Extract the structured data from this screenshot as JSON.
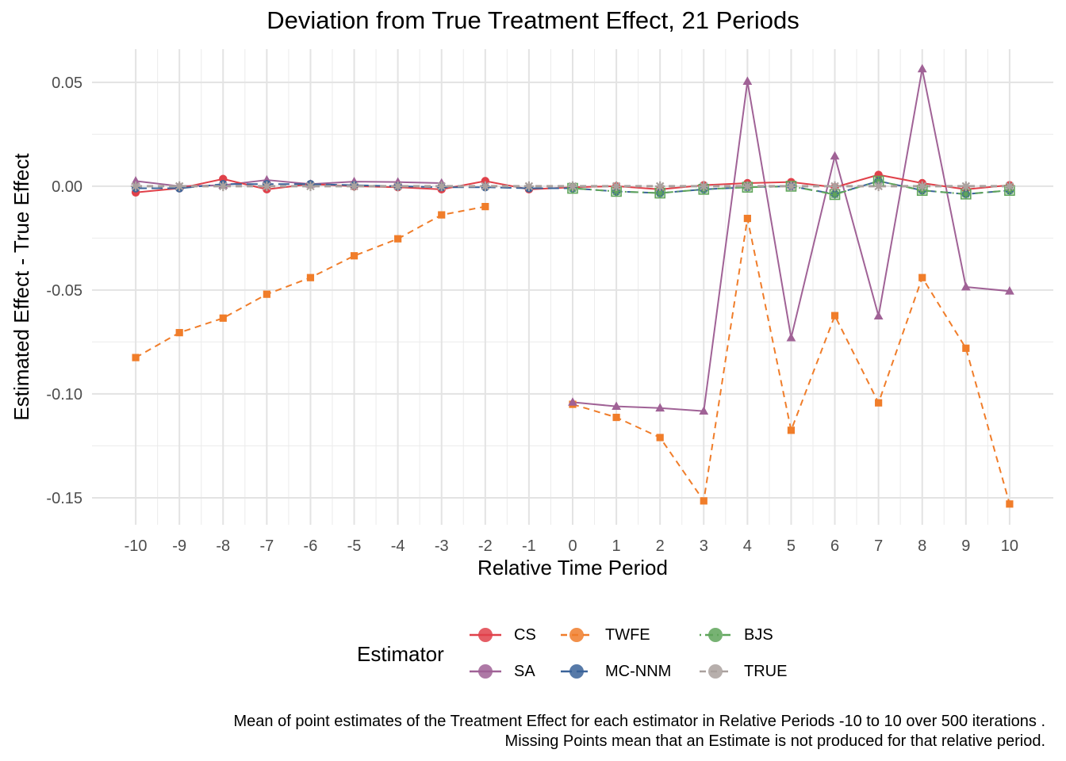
{
  "chart_data": {
    "type": "line",
    "title": "Deviation from True Treatment Effect, 21 Periods",
    "xlabel": "Relative Time Period",
    "ylabel": "Estimated Effect - True Effect",
    "x": [
      -10,
      -9,
      -8,
      -7,
      -6,
      -5,
      -4,
      -3,
      -2,
      -1,
      0,
      1,
      2,
      3,
      4,
      5,
      6,
      7,
      8,
      9,
      10
    ],
    "x_tick_labels": [
      "-10",
      "-9",
      "-8",
      "-7",
      "-6",
      "-5",
      "-4",
      "-3",
      "-2",
      "-1",
      "0",
      "1",
      "2",
      "3",
      "4",
      "5",
      "6",
      "7",
      "8",
      "9",
      "10"
    ],
    "y_ticks": [
      0.05,
      0.0,
      -0.05,
      -0.1,
      -0.15
    ],
    "y_tick_labels": [
      "0.05",
      "0.00",
      "-0.05",
      "-0.10",
      "-0.15"
    ],
    "xlim": [
      -11,
      11
    ],
    "ylim": [
      -0.163,
      0.066
    ],
    "grid": true,
    "legend_title": "Estimator",
    "legend_position": "bottom",
    "series": [
      {
        "name": "CS",
        "color": "#e0414a",
        "marker": "circle",
        "dash": "solid",
        "values": [
          -0.003,
          -0.001,
          0.0035,
          -0.0015,
          0.001,
          0.0,
          -0.0005,
          -0.0015,
          0.0025,
          -0.0015,
          -0.0005,
          0.0,
          -0.0015,
          0.0005,
          0.0015,
          0.002,
          -0.0005,
          0.0055,
          0.0015,
          -0.0015,
          0.0005
        ]
      },
      {
        "name": "SA",
        "color": "#a06296",
        "marker": "triangle",
        "dash": "solid",
        "values": [
          0.0025,
          0.0,
          0.0005,
          0.003,
          0.001,
          0.0022,
          0.002,
          0.0015,
          null,
          null,
          -0.104,
          -0.106,
          -0.1068,
          -0.1083,
          0.0505,
          -0.073,
          0.0145,
          -0.0625,
          0.0565,
          -0.0485,
          -0.0505
        ]
      },
      {
        "name": "TWFE",
        "color": "#f07d2a",
        "marker": "square",
        "dash": "dashed",
        "values": [
          -0.0825,
          -0.0705,
          -0.0635,
          -0.052,
          -0.044,
          -0.0335,
          -0.0253,
          -0.0138,
          -0.0098,
          null,
          -0.105,
          -0.1113,
          -0.121,
          -0.1515,
          -0.0155,
          -0.1175,
          -0.0623,
          -0.1043,
          -0.044,
          -0.078,
          -0.153
        ]
      },
      {
        "name": "MC-NNM",
        "color": "#3a6399",
        "marker": "circle",
        "dash": "longdash",
        "values": [
          -0.001,
          -0.001,
          0.001,
          0.001,
          0.001,
          0.0005,
          0.0,
          -0.0005,
          -0.0005,
          -0.001,
          -0.001,
          -0.0025,
          -0.0033,
          -0.0015,
          -0.0005,
          0.0,
          -0.0038,
          0.0025,
          -0.002,
          -0.0038,
          -0.002
        ]
      },
      {
        "name": "BJS",
        "color": "#5fa55a",
        "marker": "star",
        "dash": "dotdash",
        "values": [
          null,
          null,
          null,
          null,
          null,
          null,
          null,
          null,
          null,
          null,
          -0.001,
          -0.0025,
          -0.0033,
          -0.0015,
          -0.0005,
          0.0,
          -0.004,
          0.0025,
          -0.002,
          -0.0038,
          -0.002
        ]
      },
      {
        "name": "TRUE",
        "color": "#aaa19e",
        "marker": "asterisk",
        "dash": "dashed",
        "values": [
          0,
          0,
          0,
          0,
          0,
          0,
          0,
          0,
          0,
          0,
          0,
          0,
          0,
          0,
          0,
          0,
          0,
          0,
          0,
          0,
          0
        ]
      }
    ],
    "caption_lines": [
      "Mean of point estimates of the Treatment Effect for each estimator in Relative Periods -10 to 10 over 500 iterations .",
      "Missing Points mean that an Estimate is not produced for that relative period."
    ]
  }
}
